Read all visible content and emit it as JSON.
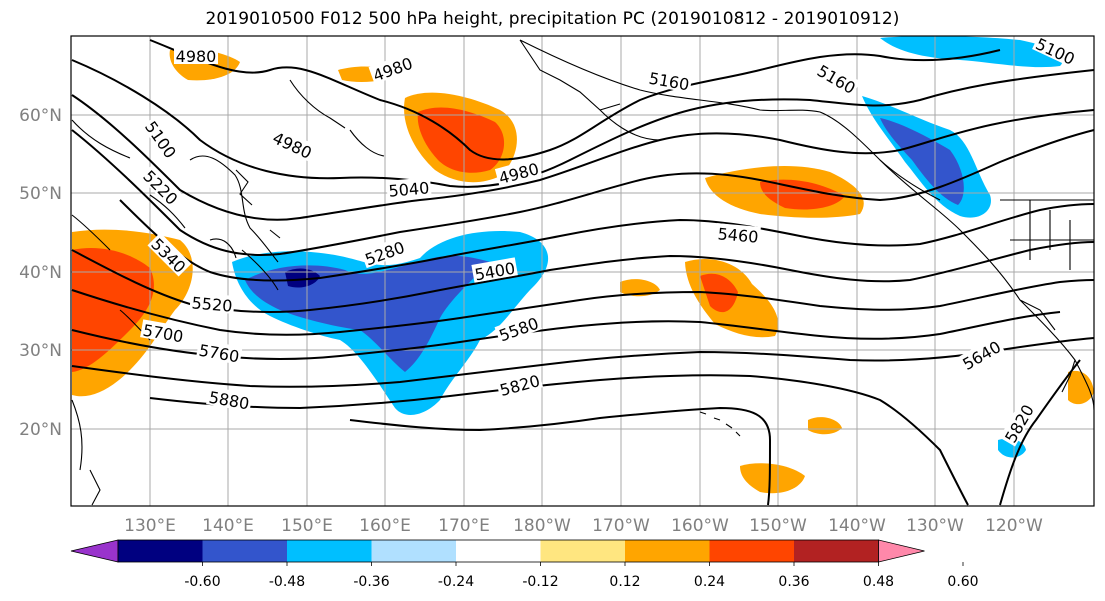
{
  "title": "2019010500 F012 500 hPa height, precipitation PC (2019010812 - 2019010912)",
  "lat_labels": [
    "60°N",
    "50°N",
    "40°N",
    "30°N",
    "20°N"
  ],
  "lon_labels": [
    "130°E",
    "140°E",
    "150°E",
    "160°E",
    "170°E",
    "180°W",
    "170°W",
    "160°W",
    "150°W",
    "140°W",
    "130°W",
    "120°W"
  ],
  "colorbar": {
    "tick_labels": [
      "-0.60",
      "-0.48",
      "-0.36",
      "-0.24",
      "-0.12",
      "0.12",
      "0.24",
      "0.36",
      "0.48",
      "0.60"
    ],
    "colors": [
      "#9933cc",
      "#000080",
      "#3355cc",
      "#00bfff",
      "#b0e0ff",
      "#ffffff",
      "#ffe680",
      "#ffa500",
      "#ff4500",
      "#b22222",
      "#ff88aa"
    ]
  },
  "contour_labels": [
    "4980",
    "4980",
    "4980",
    "4980",
    "5040",
    "5100",
    "5160",
    "5160",
    "5100",
    "5220",
    "5280",
    "5340",
    "5400",
    "5460",
    "5520",
    "5580",
    "5640",
    "5700",
    "5760",
    "5820",
    "5820",
    "5880"
  ]
}
